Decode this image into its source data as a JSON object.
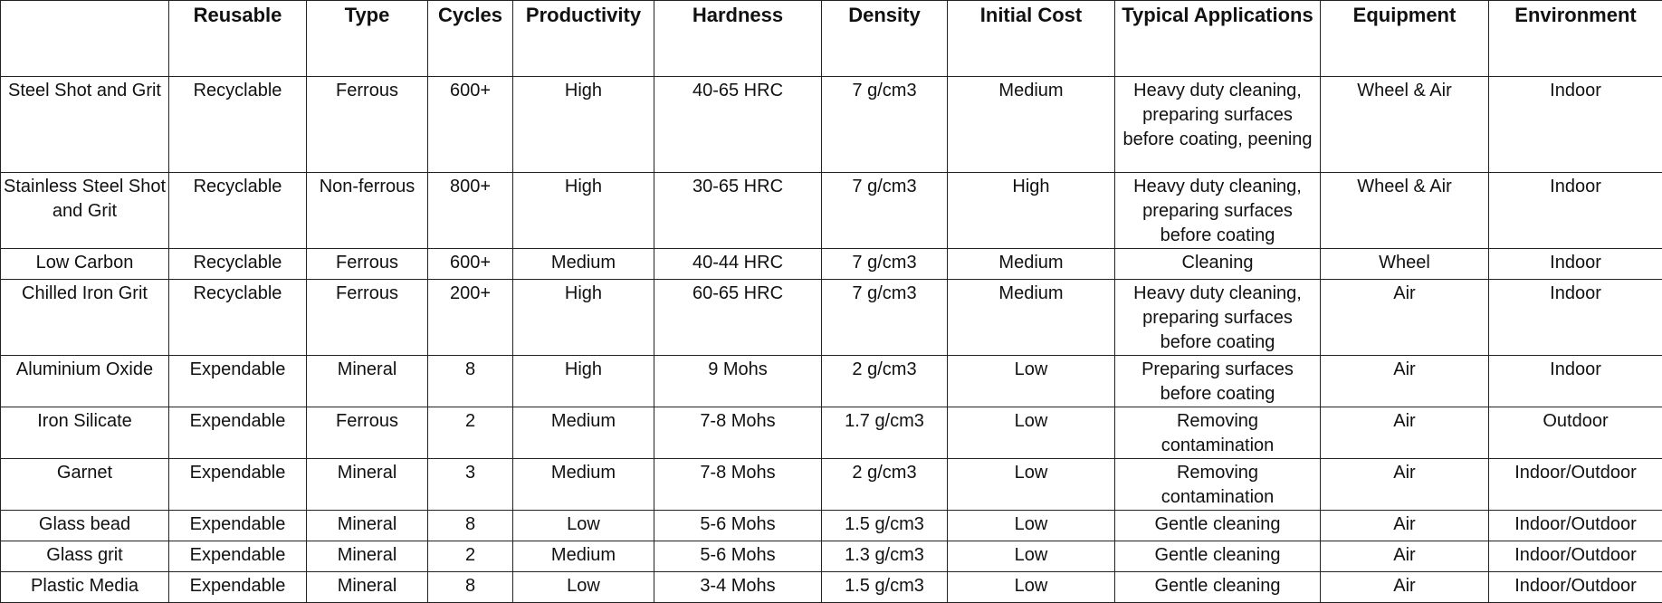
{
  "table": {
    "headers": [
      "",
      "Reusable",
      "Type",
      "Cycles",
      "Productivity",
      "Hardness",
      "Density",
      "Initial Cost",
      "Typical Applications",
      "Equipment",
      "Environment"
    ],
    "rows": [
      [
        "Steel Shot and Grit",
        "Recyclable",
        "Ferrous",
        "600+",
        "High",
        "40-65 HRC",
        "7 g/cm3",
        "Medium",
        "Heavy duty cleaning, preparing surfaces before coating, peening",
        "Wheel & Air",
        "Indoor"
      ],
      [
        "Stainless Steel Shot and Grit",
        "Recyclable",
        "Non-ferrous",
        "800+",
        "High",
        "30-65 HRC",
        "7 g/cm3",
        "High",
        "Heavy duty cleaning, preparing surfaces before coating",
        "Wheel & Air",
        "Indoor"
      ],
      [
        "Low Carbon",
        "Recyclable",
        "Ferrous",
        "600+",
        "Medium",
        "40-44 HRC",
        "7 g/cm3",
        "Medium",
        "Cleaning",
        "Wheel",
        "Indoor"
      ],
      [
        "Chilled Iron Grit",
        "Recyclable",
        "Ferrous",
        "200+",
        "High",
        "60-65 HRC",
        "7 g/cm3",
        "Medium",
        "Heavy duty cleaning, preparing surfaces before coating",
        "Air",
        "Indoor"
      ],
      [
        "Aluminium Oxide",
        "Expendable",
        "Mineral",
        "8",
        "High",
        "9 Mohs",
        "2 g/cm3",
        "Low",
        "Preparing surfaces before coating",
        "Air",
        "Indoor"
      ],
      [
        "Iron Silicate",
        "Expendable",
        "Ferrous",
        "2",
        "Medium",
        "7-8 Mohs",
        "1.7 g/cm3",
        "Low",
        "Removing contamination",
        "Air",
        "Outdoor"
      ],
      [
        "Garnet",
        "Expendable",
        "Mineral",
        "3",
        "Medium",
        "7-8 Mohs",
        "2 g/cm3",
        "Low",
        "Removing contamination",
        "Air",
        "Indoor/Outdoor"
      ],
      [
        "Glass bead",
        "Expendable",
        "Mineral",
        "8",
        "Low",
        "5-6 Mohs",
        "1.5 g/cm3",
        "Low",
        "Gentle cleaning",
        "Air",
        "Indoor/Outdoor"
      ],
      [
        "Glass grit",
        "Expendable",
        "Mineral",
        "2",
        "Medium",
        "5-6 Mohs",
        "1.3 g/cm3",
        "Low",
        "Gentle cleaning",
        "Air",
        "Indoor/Outdoor"
      ],
      [
        "Plastic Media",
        "Expendable",
        "Mineral",
        "8",
        "Low",
        "3-4 Mohs",
        "1.5 g/cm3",
        "Low",
        "Gentle cleaning",
        "Air",
        "Indoor/Outdoor"
      ]
    ]
  }
}
